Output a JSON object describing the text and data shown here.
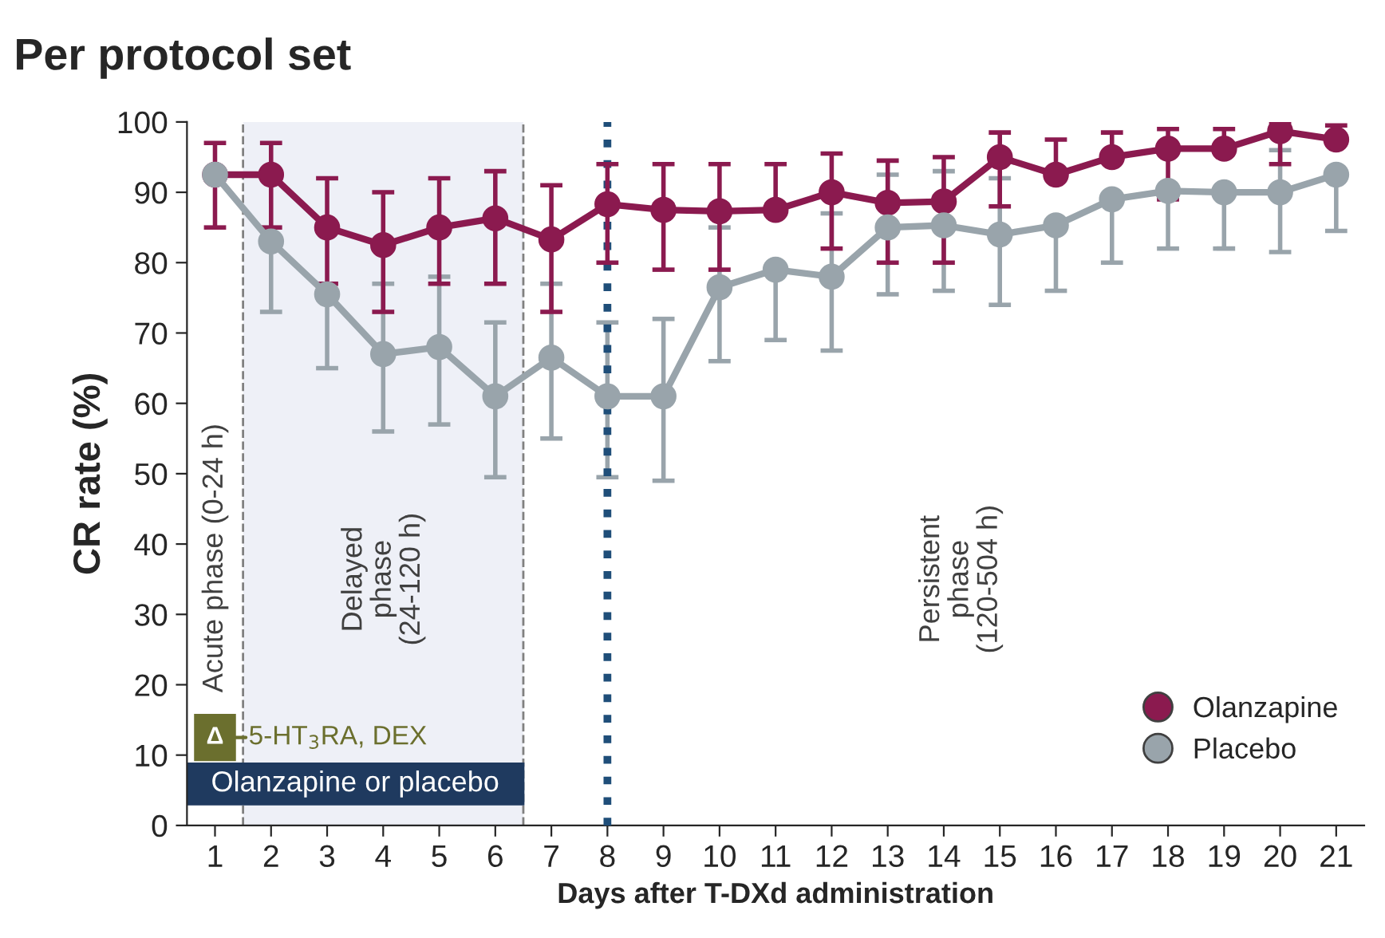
{
  "chart_data": {
    "type": "line",
    "title": "Per protocol set",
    "xlabel": "Days after T-DXd administration",
    "ylabel": "CR rate (%)",
    "x": [
      1,
      2,
      3,
      4,
      5,
      6,
      7,
      8,
      9,
      10,
      11,
      12,
      13,
      14,
      15,
      16,
      17,
      18,
      19,
      20,
      21
    ],
    "series": [
      {
        "name": "Olanzapine",
        "color": "#8b1a4f",
        "values": [
          92.5,
          92.5,
          85,
          82.5,
          85,
          86.3,
          83.3,
          88.3,
          87.5,
          87.3,
          87.5,
          90,
          88.5,
          88.7,
          95,
          92.5,
          95,
          96.2,
          96.2,
          98.7,
          97.5
        ],
        "errors": [
          [
            85,
            97
          ],
          [
            85,
            97
          ],
          [
            77,
            92
          ],
          [
            73,
            90
          ],
          [
            77,
            92
          ],
          [
            77,
            93
          ],
          [
            73,
            91
          ],
          [
            80,
            94
          ],
          [
            79,
            94
          ],
          [
            79,
            94
          ],
          [
            87.5,
            94
          ],
          [
            82,
            95.5
          ],
          [
            80,
            94.5
          ],
          [
            80,
            95
          ],
          [
            88,
            98.5
          ],
          [
            92.5,
            97.5
          ],
          [
            95,
            98.5
          ],
          [
            89,
            99
          ],
          [
            96.2,
            99
          ],
          [
            94,
            100
          ],
          [
            97.5,
            99.5
          ]
        ]
      },
      {
        "name": "Placebo",
        "color": "#99a4ab",
        "values": [
          92.5,
          83,
          75.5,
          67,
          68,
          61,
          66.5,
          61,
          61,
          76.5,
          79,
          78,
          85,
          85.3,
          84,
          85.3,
          89,
          90.2,
          90,
          90,
          92.5
        ],
        "errors": [
          null,
          [
            73,
            83
          ],
          [
            65,
            75.5
          ],
          [
            56,
            77
          ],
          [
            57,
            78
          ],
          [
            49.5,
            71.5
          ],
          [
            55,
            77
          ],
          [
            49.5,
            71.5
          ],
          [
            49,
            72
          ],
          [
            66,
            85
          ],
          [
            69,
            79
          ],
          [
            67.5,
            87
          ],
          [
            75.5,
            92.5
          ],
          [
            76,
            93
          ],
          [
            74,
            92
          ],
          [
            76,
            85.3
          ],
          [
            80,
            89
          ],
          [
            82,
            90.2
          ],
          [
            82,
            90
          ],
          [
            81.5,
            96
          ],
          [
            84.5,
            92.5
          ]
        ]
      }
    ],
    "xlim": [
      0.5,
      21.5
    ],
    "xticks": [
      1,
      2,
      3,
      4,
      5,
      6,
      7,
      8,
      9,
      10,
      11,
      12,
      13,
      14,
      15,
      16,
      17,
      18,
      19,
      20,
      21
    ],
    "ylim": [
      0,
      100
    ],
    "yticks": [
      0,
      10,
      20,
      30,
      40,
      50,
      60,
      70,
      80,
      90,
      100
    ],
    "bands": [
      {
        "axis": "x",
        "from": 1.5,
        "to": 6.5,
        "label": "Delayed\nphase\n(24-120 h)",
        "color": "#eef0f7"
      }
    ],
    "ref_lines": [
      {
        "axis": "x",
        "value": 1.5,
        "color": "#808080",
        "line_style": "dashed"
      },
      {
        "axis": "x",
        "value": 6.5,
        "color": "#808080",
        "line_style": "dashed"
      },
      {
        "axis": "x",
        "value": 8,
        "color": "#1f4e79",
        "line_style": "dotted"
      }
    ],
    "annotations": [
      "Acute phase (0-24 h)",
      "Persistent\nphase\n(120-504 h)",
      "Δ",
      "5-HT$_{3}$RA, DEX",
      "Olanzapine or placebo"
    ],
    "marker": "circle",
    "line_style": "solid",
    "legend": "bottom right",
    "grid": false
  }
}
